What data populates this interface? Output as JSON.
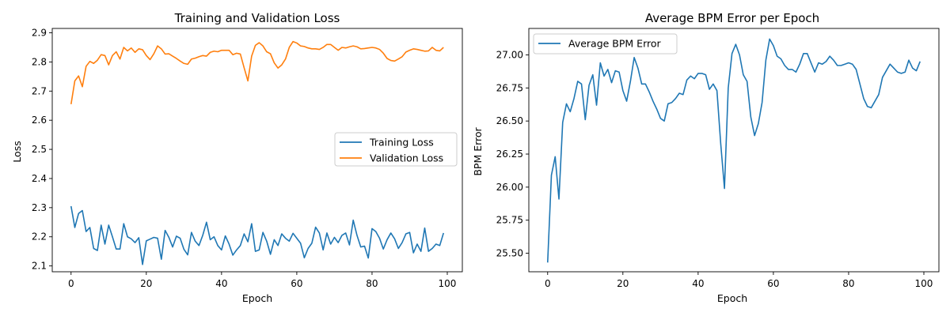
{
  "chart_data": [
    {
      "type": "line",
      "title": "Training and Validation Loss",
      "xlabel": "Epoch",
      "ylabel": "Loss",
      "xlim": [
        -5,
        104
      ],
      "ylim": [
        2.08,
        2.915
      ],
      "xticks": [
        0,
        20,
        40,
        60,
        80,
        100
      ],
      "yticks": [
        2.1,
        2.2,
        2.3,
        2.4,
        2.5,
        2.6,
        2.7,
        2.8,
        2.9
      ],
      "ytick_decimals": 1,
      "grid": false,
      "legend": "center right",
      "x_start": 0,
      "series": [
        {
          "name": "Training Loss",
          "color": "#1f77b4",
          "values": [
            2.305,
            2.232,
            2.28,
            2.29,
            2.218,
            2.232,
            2.16,
            2.153,
            2.24,
            2.175,
            2.24,
            2.2,
            2.158,
            2.158,
            2.245,
            2.2,
            2.193,
            2.18,
            2.197,
            2.105,
            2.186,
            2.192,
            2.198,
            2.195,
            2.123,
            2.222,
            2.198,
            2.165,
            2.202,
            2.195,
            2.157,
            2.138,
            2.215,
            2.185,
            2.17,
            2.205,
            2.25,
            2.19,
            2.2,
            2.17,
            2.155,
            2.203,
            2.175,
            2.137,
            2.155,
            2.17,
            2.21,
            2.183,
            2.245,
            2.15,
            2.155,
            2.215,
            2.185,
            2.14,
            2.19,
            2.17,
            2.21,
            2.195,
            2.185,
            2.212,
            2.195,
            2.178,
            2.128,
            2.16,
            2.178,
            2.233,
            2.213,
            2.155,
            2.213,
            2.175,
            2.198,
            2.18,
            2.205,
            2.213,
            2.172,
            2.257,
            2.205,
            2.165,
            2.168,
            2.127,
            2.228,
            2.218,
            2.195,
            2.158,
            2.19,
            2.213,
            2.193,
            2.16,
            2.18,
            2.21,
            2.215,
            2.145,
            2.175,
            2.15,
            2.23,
            2.15,
            2.16,
            2.175,
            2.17,
            2.213
          ]
        },
        {
          "name": "Validation Loss",
          "color": "#ff7f0e",
          "values": [
            2.655,
            2.735,
            2.752,
            2.715,
            2.785,
            2.802,
            2.795,
            2.806,
            2.825,
            2.822,
            2.79,
            2.822,
            2.835,
            2.81,
            2.85,
            2.838,
            2.848,
            2.833,
            2.845,
            2.842,
            2.822,
            2.808,
            2.828,
            2.855,
            2.845,
            2.827,
            2.828,
            2.82,
            2.812,
            2.803,
            2.795,
            2.792,
            2.81,
            2.813,
            2.818,
            2.822,
            2.82,
            2.833,
            2.837,
            2.835,
            2.84,
            2.84,
            2.84,
            2.825,
            2.83,
            2.827,
            2.78,
            2.735,
            2.82,
            2.857,
            2.866,
            2.855,
            2.835,
            2.828,
            2.797,
            2.779,
            2.79,
            2.81,
            2.85,
            2.87,
            2.865,
            2.855,
            2.853,
            2.848,
            2.845,
            2.845,
            2.843,
            2.85,
            2.86,
            2.86,
            2.85,
            2.84,
            2.85,
            2.848,
            2.852,
            2.855,
            2.852,
            2.845,
            2.846,
            2.848,
            2.85,
            2.848,
            2.843,
            2.83,
            2.812,
            2.805,
            2.803,
            2.81,
            2.818,
            2.834,
            2.84,
            2.845,
            2.843,
            2.84,
            2.837,
            2.838,
            2.85,
            2.84,
            2.838,
            2.85
          ]
        }
      ]
    },
    {
      "type": "line",
      "title": "Average BPM Error per Epoch",
      "xlabel": "Epoch",
      "ylabel": "BPM Error",
      "xlim": [
        -5,
        104
      ],
      "ylim": [
        25.36,
        27.2
      ],
      "xticks": [
        0,
        20,
        40,
        60,
        80,
        100
      ],
      "yticks": [
        25.5,
        25.75,
        26.0,
        26.25,
        26.5,
        26.75,
        27.0
      ],
      "ytick_decimals": 2,
      "grid": false,
      "legend": "upper left",
      "x_start": 0,
      "series": [
        {
          "name": "Average BPM Error",
          "color": "#1f77b4",
          "values": [
            25.43,
            26.09,
            26.23,
            25.91,
            26.49,
            26.63,
            26.57,
            26.67,
            26.8,
            26.78,
            26.51,
            26.77,
            26.85,
            26.62,
            26.94,
            26.84,
            26.89,
            26.79,
            26.88,
            26.87,
            26.73,
            26.65,
            26.8,
            26.98,
            26.9,
            26.78,
            26.78,
            26.72,
            26.65,
            26.59,
            26.52,
            26.5,
            26.63,
            26.64,
            26.67,
            26.71,
            26.7,
            26.81,
            26.84,
            26.82,
            26.86,
            26.86,
            26.85,
            26.74,
            26.78,
            26.73,
            26.33,
            25.99,
            26.75,
            27.01,
            27.08,
            27.0,
            26.85,
            26.8,
            26.53,
            26.39,
            26.48,
            26.64,
            26.96,
            27.12,
            27.07,
            26.99,
            26.97,
            26.92,
            26.89,
            26.89,
            26.87,
            26.93,
            27.01,
            27.01,
            26.94,
            26.87,
            26.94,
            26.93,
            26.95,
            26.99,
            26.96,
            26.92,
            26.92,
            26.93,
            26.94,
            26.93,
            26.89,
            26.78,
            26.67,
            26.61,
            26.6,
            26.65,
            26.7,
            26.83,
            26.88,
            26.93,
            26.9,
            26.87,
            26.86,
            26.87,
            26.96,
            26.9,
            26.88,
            26.95
          ]
        }
      ]
    }
  ]
}
